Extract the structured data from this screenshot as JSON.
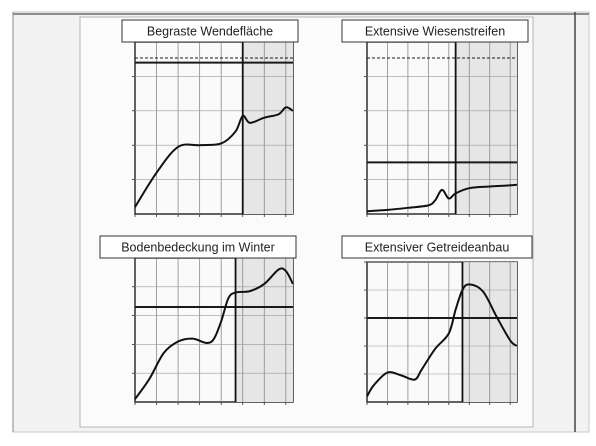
{
  "chart_data": [
    {
      "type": "line",
      "title": "Begraste Wendefläche",
      "xlim": [
        1990,
        2012
      ],
      "ylim": [
        0,
        5000
      ],
      "y_ticks": [
        1000,
        2000,
        3000,
        4000,
        5000
      ],
      "x_ticks": [
        1990,
        1993,
        1996,
        1999,
        2002,
        2005,
        2008,
        2011
      ],
      "vertical_marker": 2005,
      "reference_lines": [
        {
          "value": 5300,
          "style": "dashed"
        },
        {
          "value": 4400,
          "style": "solid"
        }
      ],
      "shaded_from": 2005,
      "grid": true,
      "series": [
        {
          "x": [
            1990,
            1993,
            1996,
            1999,
            2002,
            2004,
            2005,
            2006,
            2008,
            2010,
            2011,
            2012
          ],
          "y": [
            200,
            1200,
            1950,
            2000,
            2050,
            2400,
            2850,
            2650,
            2800,
            2900,
            3100,
            3000
          ]
        }
      ]
    },
    {
      "type": "line",
      "title": "Extensive Wiesenstreifen",
      "xlim": [
        1990,
        2012
      ],
      "ylim": [
        0,
        5000
      ],
      "y_ticks": [
        1000,
        2000,
        3000,
        4000,
        5000
      ],
      "x_ticks": [
        1990,
        1993,
        1996,
        1999,
        2002,
        2005,
        2008,
        2011
      ],
      "vertical_marker": 2003,
      "reference_lines": [
        {
          "value": 5400,
          "style": "dashed"
        },
        {
          "value": 1500,
          "style": "solid"
        }
      ],
      "shaded_from": 2003,
      "grid": true,
      "series": [
        {
          "x": [
            1990,
            1993,
            1996,
            1999,
            2000,
            2001,
            2002,
            2003,
            2005,
            2008,
            2010,
            2012
          ],
          "y": [
            80,
            120,
            180,
            250,
            400,
            700,
            450,
            600,
            750,
            800,
            820,
            850
          ]
        }
      ]
    },
    {
      "type": "line",
      "title": "Bodenbedeckung im Winter",
      "xlim": [
        1990,
        2012
      ],
      "ylim": [
        0,
        5000
      ],
      "y_ticks": [
        1000,
        2000,
        3000,
        4000,
        5000
      ],
      "x_ticks": [
        1990,
        1993,
        1996,
        1999,
        2002,
        2005,
        2008,
        2011
      ],
      "vertical_marker": 2004,
      "reference_lines": [
        {
          "value": 3300,
          "style": "solid"
        }
      ],
      "shaded_from": 2004,
      "grid": true,
      "series": [
        {
          "x": [
            1990,
            1992,
            1994,
            1996,
            1998,
            2000,
            2001,
            2002,
            2003,
            2004,
            2006,
            2008,
            2010,
            2011,
            2012
          ],
          "y": [
            100,
            800,
            1700,
            2100,
            2200,
            2050,
            2200,
            2800,
            3600,
            3800,
            3850,
            4100,
            4600,
            4550,
            4100
          ]
        }
      ]
    },
    {
      "type": "line",
      "title": "Extensiver Getreideanbau",
      "xlim": [
        1990,
        2012
      ],
      "ylim": [
        0,
        5000
      ],
      "y_ticks": [
        1000,
        2000,
        3000,
        4000,
        5000
      ],
      "x_ticks": [
        1990,
        1993,
        1996,
        1999,
        2002,
        2005,
        2008,
        2011
      ],
      "vertical_marker": 2004,
      "reference_lines": [
        {
          "value": 3000,
          "style": "solid"
        }
      ],
      "shaded_from": 2004,
      "grid": true,
      "series": [
        {
          "x": [
            1990,
            1991,
            1993,
            1995,
            1997,
            1998,
            2000,
            2002,
            2003,
            2004,
            2005,
            2007,
            2009,
            2011,
            2012
          ],
          "y": [
            200,
            600,
            1050,
            950,
            800,
            1150,
            1900,
            2450,
            3300,
            4000,
            4200,
            3950,
            3050,
            2200,
            2000
          ]
        }
      ]
    }
  ]
}
